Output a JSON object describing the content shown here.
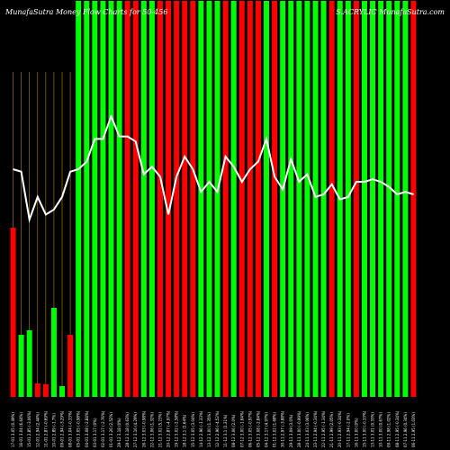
{
  "header": {
    "left": "MunafaSutra  Money Flow  Charts for 50-456",
    "right": "S.ACRYLIC  MunafaSutra.com"
  },
  "chart_data": {
    "type": "bar",
    "title": "MunafaSutra  Money Flow  Charts for 50-456",
    "categories": [
      "17-01-2024",
      "16-01-2024",
      "15-01-2024",
      "12-01-2024",
      "11-01-2024",
      "10-01-2024",
      "09-01-2024",
      "08-01-2024",
      "05-01-2024",
      "04-01-2024",
      "03-01-2024",
      "02-01-2024",
      "01-01-2024",
      "29-12-2023",
      "28-12-2023",
      "27-12-2023",
      "26-12-2023",
      "22-12-2023",
      "21-12-2023",
      "20-12-2023",
      "19-12-2023",
      "18-12-2023",
      "15-12-2023",
      "14-12-2023",
      "13-12-2023",
      "12-12-2023",
      "11-12-2023",
      "08-12-2023",
      "07-12-2023",
      "06-12-2023",
      "05-12-2023",
      "04-12-2023",
      "01-12-2023",
      "30-11-2023",
      "29-11-2023",
      "28-11-2023",
      "24-11-2023",
      "23-11-2023",
      "22-11-2023",
      "21-11-2023",
      "20-11-2023",
      "17-11-2023",
      "16-11-2023",
      "15-11-2023",
      "13-11-2023",
      "10-11-2023",
      "09-11-2023",
      "08-11-2023",
      "07-11-2023",
      "06-11-2023"
    ],
    "x_labels": [
      "17-01 3.05 (0.49%)",
      "16-01 3.04 (6.64%)",
      "15-01 2.85 (-3.06%)",
      "12-01 2.94 (2.44%)",
      "11-01 2.87 (-0.69%)",
      "10-01 2.89 (-1.7%)",
      "09-01 2.94 (-3.29%)",
      "08-01 3.04 (-0.33%)",
      "05-01 3.05 (-0.98%)",
      "04-01 3.08 (-2.84%)",
      "03-01 3.17 (0%)",
      "02-01 3.17 (-2.76%)",
      "01-01 3.26 (2.52%)",
      "29-12 3.18 (0%)",
      "28-12 3.18 (0.63%)",
      "27-12 3.16 (4.29%)",
      "26-12 3.03 (-0.98%)",
      "22-12 3.06 (1.32%)",
      "21-12 3.02 (5.23%)",
      "20-12 2.87 (-4.97%)",
      "19-12 3.02 (-2.58%)",
      "18-12 3.1 (1.64%)",
      "15-12 3.05 (3.04%)",
      "14-12 2.96 (-1.33%)",
      "13-12 3.00 (1.35%)",
      "12-12 2.96 (-4.52%)",
      "11-12 3.1 (1.31%)",
      "08-12 3.06 (2.0%)",
      "07-12 3.00 (-1.64%)",
      "06-12 3.05 (-0.97%)",
      "05-12 3.08 (-2.84%)",
      "04-12 3.17 (4.97%)",
      "01-12 3.02 (1.68%)",
      "30-11 2.97 (-3.88%)",
      "29-11 3.09 (3.0%)",
      "28-11 3.00 (-0.99%)",
      "24-11 3.03 (3.06%)",
      "23-11 2.94 (-0.34%)",
      "22-11 2.95 (-1.34%)",
      "21-11 2.99 (2.05%)",
      "20-11 2.93 (-0.34%)",
      "17-11 2.94 (-2.0%)",
      "16-11 3.00 (0%)",
      "15-11 3.00 (-0.33%)",
      "13-11 3.01 (0.33%)",
      "10-11 3.00 (0.67%)",
      "09-11 2.98 (1.02%)",
      "08-11 2.95 (-0.34%)",
      "07-11 2.96 (0.34%)",
      "06-11 2.95 (1.03%)"
    ],
    "series": [
      {
        "values": [
          188,
          -69,
          -74,
          -15,
          -14,
          99,
          -12,
          -69,
          -440,
          -440,
          -440,
          -440,
          -440,
          -440,
          -440,
          -440,
          -440,
          -440,
          -440,
          -440,
          -440,
          -440,
          -440,
          -440,
          -440,
          -440,
          -440,
          -440,
          -440,
          -440,
          -440,
          -440,
          -440,
          -440,
          -440,
          -440,
          -440,
          -440,
          -440,
          -440,
          -440,
          -440,
          -440,
          -440,
          -440,
          -440,
          -440,
          -440,
          -440,
          -440
        ],
        "colors": [
          "#ff0000",
          "#00ff00",
          "#00ff00",
          "#ff0000",
          "#ff0000",
          "#00ff00",
          "#00ff00",
          "#ff0000",
          "#00ff00",
          "#00ff00",
          "#00ff00",
          "#00ff00",
          "#00ff00",
          "#00ff00",
          "#ff0000",
          "#ff0000",
          "#00ff00",
          "#00ff00",
          "#ff0000",
          "#ff0000",
          "#ff0000",
          "#ff0000",
          "#ff0000",
          "#00ff00",
          "#00ff00",
          "#00ff00",
          "#ff0000",
          "#00ff00",
          "#ff0000",
          "#ff0000",
          "#ff0000",
          "#00ff00",
          "#ff0000",
          "#00ff00",
          "#00ff00",
          "#00ff00",
          "#00ff00",
          "#00ff00",
          "#00ff00",
          "#ff0000",
          "#00ff00",
          "#00ff00",
          "#ff0000",
          "#00ff00",
          "#00ff00",
          "#00ff00",
          "#00ff00",
          "#00ff00",
          "#00ff00",
          "#ff0000"
        ]
      }
    ],
    "line_values": [
      3.05,
      3.04,
      2.85,
      2.94,
      2.87,
      2.89,
      2.94,
      3.04,
      3.05,
      3.08,
      3.17,
      3.17,
      3.26,
      3.18,
      3.18,
      3.16,
      3.03,
      3.06,
      3.02,
      2.87,
      3.02,
      3.1,
      3.05,
      2.96,
      3.0,
      2.96,
      3.1,
      3.06,
      3.0,
      3.05,
      3.08,
      3.17,
      3.02,
      2.97,
      3.09,
      3.0,
      3.03,
      2.94,
      2.95,
      2.99,
      2.93,
      2.94,
      3.0,
      3.0,
      3.01,
      3.0,
      2.98,
      2.95,
      2.96,
      2.95
    ],
    "grid": true,
    "grid_color": "#b8860b",
    "background": "#000000",
    "line_color": "#ffffff"
  }
}
